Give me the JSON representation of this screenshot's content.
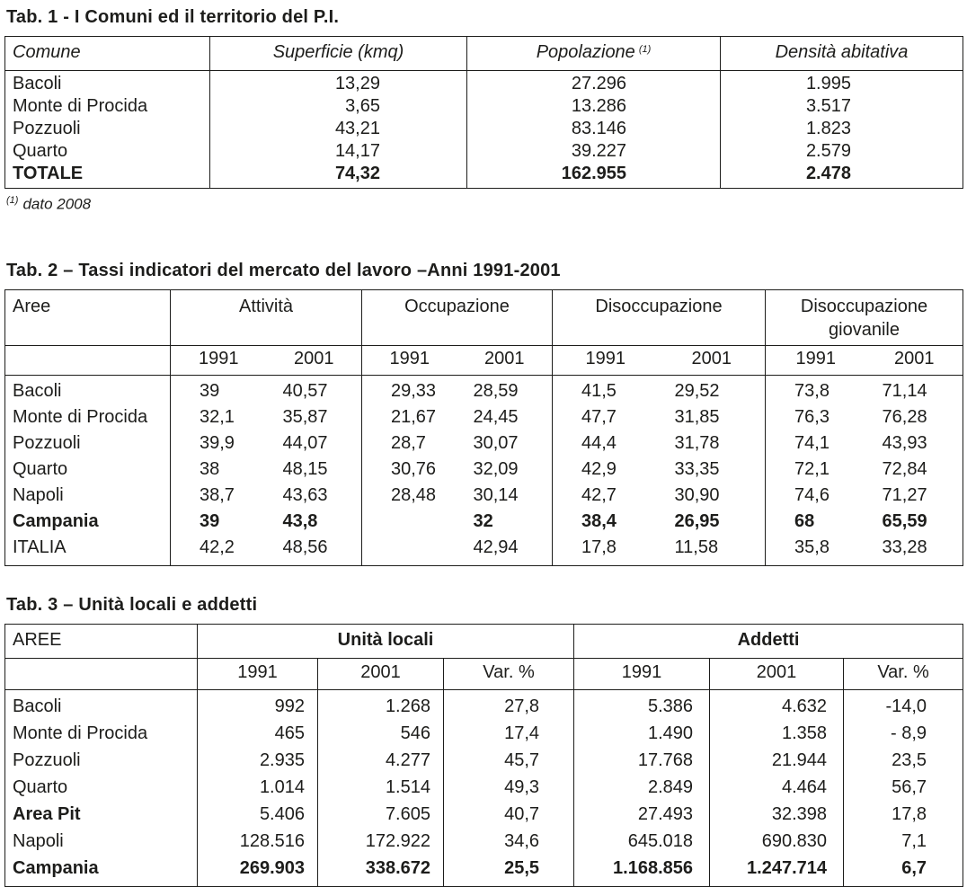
{
  "table1": {
    "title": "Tab. 1 - I Comuni ed il territorio del P.I.",
    "columns": [
      "Comune",
      "Superficie (kmq)",
      "Popolazione",
      "Densità abitativa"
    ],
    "note_marker": "(1)",
    "rows": [
      {
        "comune": "Bacoli",
        "superficie": "13,29",
        "popolazione": "27.296",
        "densita": "1.995",
        "bold": false
      },
      {
        "comune": "Monte di Procida",
        "superficie": "3,65",
        "popolazione": "13.286",
        "densita": "3.517",
        "bold": false
      },
      {
        "comune": "Pozzuoli",
        "superficie": "43,21",
        "popolazione": "83.146",
        "densita": "1.823",
        "bold": false
      },
      {
        "comune": "Quarto",
        "superficie": "14,17",
        "popolazione": "39.227",
        "densita": "2.579",
        "bold": false
      },
      {
        "comune": "TOTALE",
        "superficie": "74,32",
        "popolazione": "162.955",
        "densita": "2.478",
        "bold": true
      }
    ],
    "footnote_marker": "(1)",
    "footnote_text": "dato 2008"
  },
  "table2": {
    "title": "Tab. 2 – Tassi indicatori del mercato del lavoro –Anni 1991-2001",
    "area_header": "Aree",
    "groups": [
      "Attività",
      "Occupazione",
      "Disoccupazione",
      "Disoccupazione giovanile"
    ],
    "year_headers": [
      "1991",
      "2001",
      "1991",
      "2001",
      "1991",
      "2001",
      "1991",
      "2001"
    ],
    "rows": [
      {
        "area": "Bacoli",
        "values": [
          "39",
          "40,57",
          "29,33",
          "28,59",
          "41,5",
          "29,52",
          "73,8",
          "71,14"
        ],
        "bold": false
      },
      {
        "area": "Monte di Procida",
        "values": [
          "32,1",
          "35,87",
          "21,67",
          "24,45",
          "47,7",
          "31,85",
          "76,3",
          "76,28"
        ],
        "bold": false
      },
      {
        "area": "Pozzuoli",
        "values": [
          "39,9",
          "44,07",
          "28,7",
          "30,07",
          "44,4",
          "31,78",
          "74,1",
          "43,93"
        ],
        "bold": false
      },
      {
        "area": "Quarto",
        "values": [
          "38",
          "48,15",
          "30,76",
          "32,09",
          "42,9",
          "33,35",
          "72,1",
          "72,84"
        ],
        "bold": false
      },
      {
        "area": "Napoli",
        "values": [
          "38,7",
          "43,63",
          "28,48",
          "30,14",
          "42,7",
          "30,90",
          "74,6",
          "71,27"
        ],
        "bold": false
      },
      {
        "area": "Campania",
        "values": [
          "39",
          "43,8",
          "",
          "32",
          "38,4",
          "26,95",
          "68",
          "65,59"
        ],
        "bold": true
      },
      {
        "area": "ITALIA",
        "values": [
          "42,2",
          "48,56",
          "",
          "42,94",
          "17,8",
          "11,58",
          "35,8",
          "33,28"
        ],
        "bold": false
      }
    ]
  },
  "table3": {
    "title": "Tab. 3 – Unità locali e addetti",
    "area_header": "AREE",
    "groups": [
      "Unità locali",
      "Addetti"
    ],
    "sub_headers": [
      "1991",
      "2001",
      "Var. %",
      "1991",
      "2001",
      "Var. %"
    ],
    "rows": [
      {
        "area": "Bacoli",
        "values": [
          "992",
          "1.268",
          "27,8",
          "5.386",
          "4.632",
          "-14,0"
        ],
        "bold": false,
        "bold_label": false
      },
      {
        "area": "Monte di Procida",
        "values": [
          "465",
          "546",
          "17,4",
          "1.490",
          "1.358",
          "- 8,9"
        ],
        "bold": false,
        "bold_label": false
      },
      {
        "area": "Pozzuoli",
        "values": [
          "2.935",
          "4.277",
          "45,7",
          "17.768",
          "21.944",
          "23,5"
        ],
        "bold": false,
        "bold_label": false
      },
      {
        "area": "Quarto",
        "values": [
          "1.014",
          "1.514",
          "49,3",
          "2.849",
          "4.464",
          "56,7"
        ],
        "bold": false,
        "bold_label": false
      },
      {
        "area": "Area Pit",
        "values": [
          "5.406",
          "7.605",
          "40,7",
          "27.493",
          "32.398",
          "17,8"
        ],
        "bold": false,
        "bold_label": true
      },
      {
        "area": "Napoli",
        "values": [
          "128.516",
          "172.922",
          "34,6",
          "645.018",
          "690.830",
          "7,1"
        ],
        "bold": false,
        "bold_label": false
      },
      {
        "area": "Campania",
        "values": [
          "269.903",
          "338.672",
          "25,5",
          "1.168.856",
          "1.247.714",
          "6,7"
        ],
        "bold": true,
        "bold_label": false
      }
    ]
  }
}
